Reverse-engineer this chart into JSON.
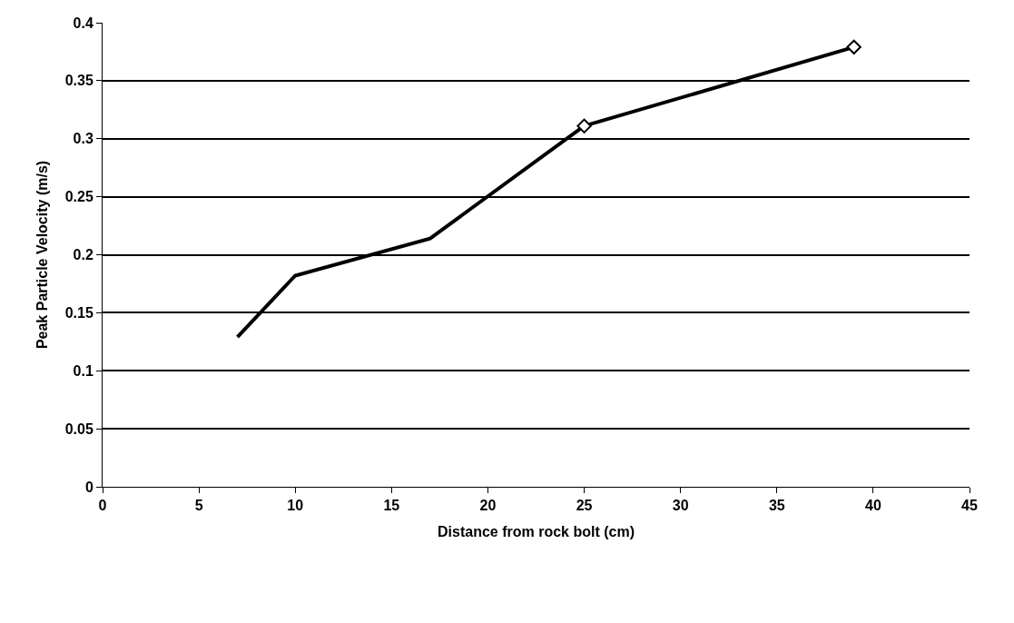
{
  "chart_data": {
    "type": "line",
    "xlabel": "Distance from rock bolt (cm)",
    "ylabel": "Peak Particle Velocity (m/s)",
    "series": [
      {
        "color": "#000000",
        "x": [
          7,
          10,
          17,
          25
        ],
        "values": [
          0.129,
          0.182,
          0.214,
          0.311
        ],
        "marker": "none"
      },
      {
        "color": "#000000",
        "x": [
          25,
          39
        ],
        "values": [
          0.311,
          0.379
        ],
        "marker": "diamond"
      }
    ],
    "xlim": [
      0,
      45
    ],
    "xticks": [
      0,
      5,
      10,
      15,
      20,
      25,
      30,
      35,
      40,
      45
    ],
    "ylim": [
      0,
      0.4
    ],
    "yticks": [
      0,
      0.05,
      0.1,
      0.15,
      0.2,
      0.25,
      0.3,
      0.35,
      0.4
    ],
    "grid": "y",
    "line_style": "solid"
  }
}
